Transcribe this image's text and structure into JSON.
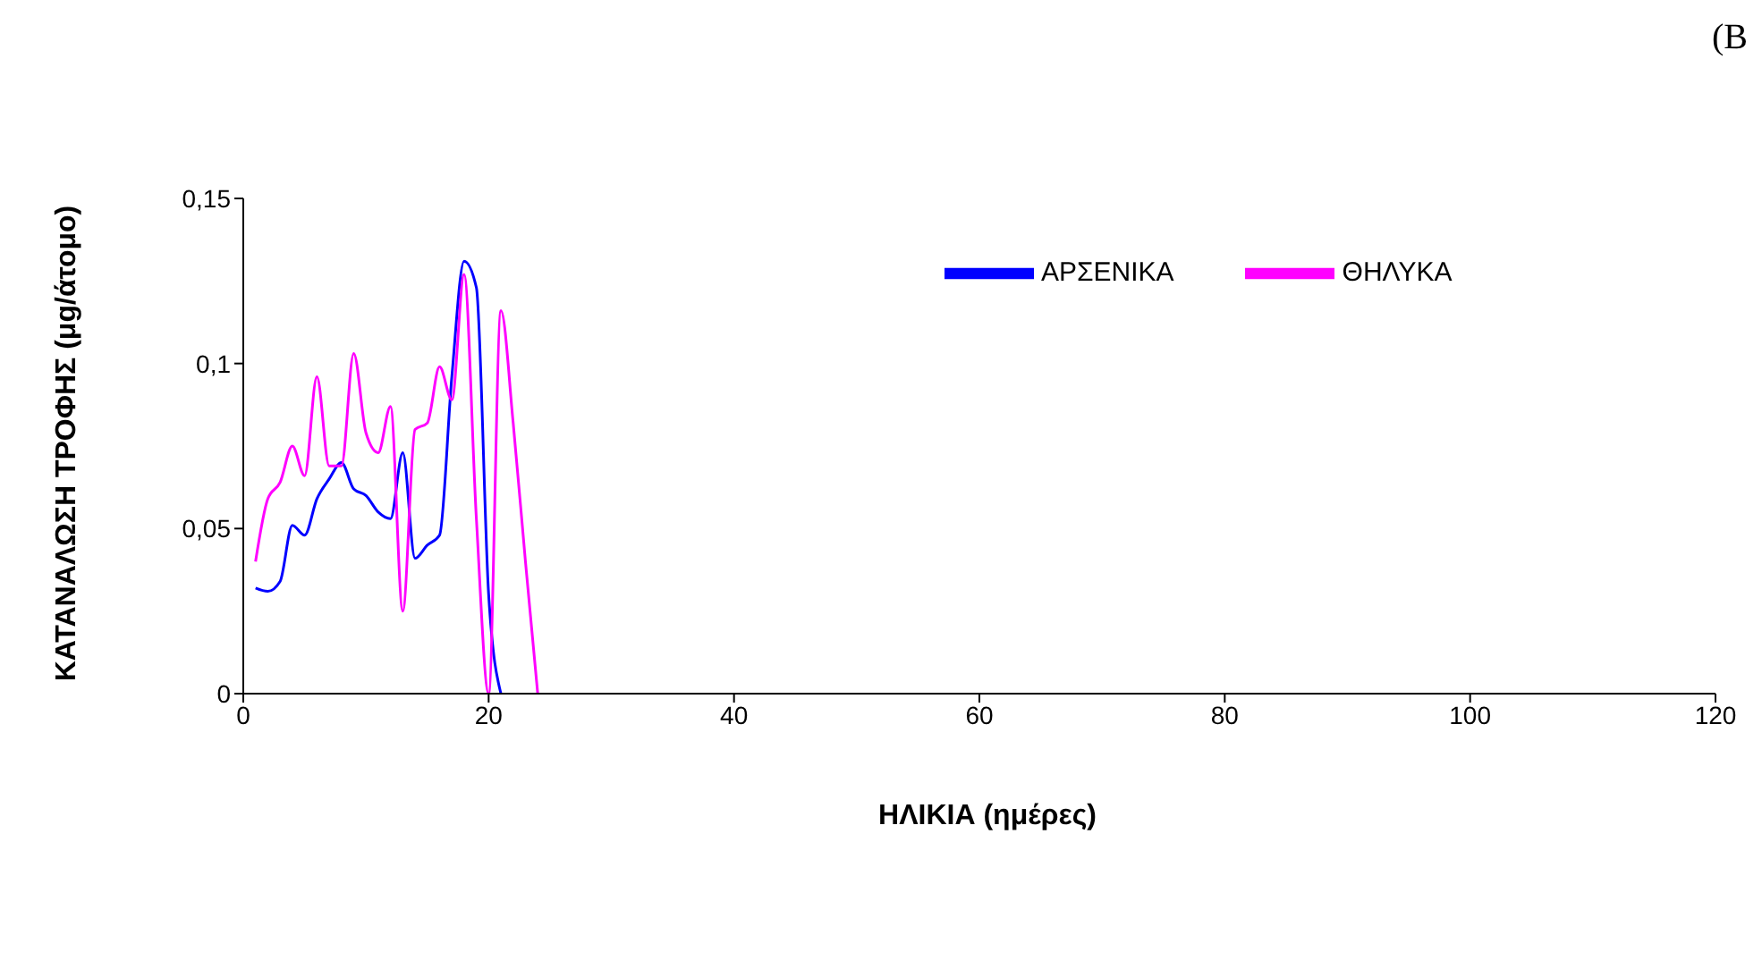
{
  "chart_data": {
    "type": "line",
    "xlabel": "ΗΛΙΚΙΑ (ημέρες)",
    "ylabel": "ΚΑΤΑΝΑΛΩΣΗ ΤΡΟΦΗΣ (μg/άτομο)",
    "annotations": [
      "(B"
    ],
    "x": [
      1,
      2,
      3,
      4,
      5,
      6,
      7,
      8,
      9,
      10,
      11,
      12,
      13,
      14,
      15,
      16,
      17,
      18,
      19,
      20,
      21,
      22,
      23,
      24
    ],
    "series": [
      {
        "name": "ΑΡΣΕΝΙΚΑ",
        "color": "#0000ff",
        "values": [
          0.032,
          0.031,
          0.034,
          0.051,
          0.048,
          0.059,
          0.065,
          0.07,
          0.062,
          0.06,
          0.055,
          0.053,
          0.073,
          0.041,
          0.045,
          0.048,
          0.096,
          0.131,
          0.123,
          0.03,
          0,
          null,
          null,
          null
        ]
      },
      {
        "name": "ΘΗΛΥΚΑ",
        "color": "#ff00ff",
        "values": [
          0.04,
          0.059,
          0.064,
          0.075,
          0.066,
          0.096,
          0.069,
          0.069,
          0.103,
          0.079,
          0.073,
          0.087,
          0.025,
          0.08,
          0.082,
          0.099,
          0.089,
          0.127,
          0.053,
          0,
          0.116,
          0.082,
          0.04,
          0
        ]
      }
    ],
    "xlim": [
      0,
      120
    ],
    "xticks": [
      0,
      20,
      40,
      60,
      80,
      100,
      120
    ],
    "ylim": [
      0,
      0.15
    ],
    "yticks": [
      0,
      {
        "value": 0.05,
        "label": "0,05"
      },
      {
        "value": 0.1,
        "label": "0,1"
      },
      {
        "value": 0.15,
        "label": "0,15"
      }
    ],
    "grid": false,
    "legend": "top right",
    "marker": "none",
    "line_style": "solid"
  }
}
